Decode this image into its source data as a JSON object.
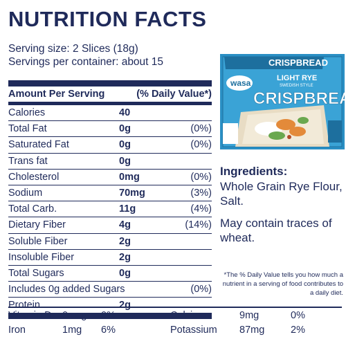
{
  "title": "NUTRITION FACTS",
  "serving_size": "Serving size: 2 Slices (18g)",
  "servings_per_container": "Servings per container: about 15",
  "table_header": {
    "left": "Amount Per Serving",
    "right": "(% Daily Value*)"
  },
  "rows": [
    {
      "name": "Calories",
      "amount": "40",
      "dv": ""
    },
    {
      "name": "Total Fat",
      "amount": "0g",
      "dv": "(0%)"
    },
    {
      "name": "Saturated Fat",
      "amount": "0g",
      "dv": "(0%)"
    },
    {
      "name": "Trans fat",
      "amount": "0g",
      "dv": ""
    },
    {
      "name": "Cholesterol",
      "amount": "0mg",
      "dv": "(0%)"
    },
    {
      "name": "Sodium",
      "amount": "70mg",
      "dv": "(3%)"
    },
    {
      "name": "Total Carb.",
      "amount": "11g",
      "dv": "(4%)"
    },
    {
      "name": "Dietary Fiber",
      "amount": "4g",
      "dv": "(14%)"
    },
    {
      "name": "Soluble Fiber",
      "amount": "2g",
      "dv": ""
    },
    {
      "name": "Insoluble Fiber",
      "amount": "2g",
      "dv": ""
    },
    {
      "name": "Total Sugars",
      "amount": "0g",
      "dv": ""
    },
    {
      "name": "Includes 0g added Sugars",
      "amount": "",
      "dv": "(0%)"
    },
    {
      "name": "Protein",
      "amount": "2g",
      "dv": ""
    }
  ],
  "vitamins": [
    {
      "n1": "Vitamin D",
      "a1": "0mcg",
      "p1": "0%",
      "n2": "Calcium",
      "a2": "9mg",
      "p2": "0%"
    },
    {
      "n1": "Iron",
      "a1": "1mg",
      "p1": "6%",
      "n2": "Potassium",
      "a2": "87mg",
      "p2": "2%"
    }
  ],
  "ingredients_title": "Ingredients:",
  "ingredients_text": "Whole Grain Rye Flour, Salt.",
  "contains_text": "May contain traces of wheat.",
  "footnote": "*The % Daily Value tells you how much a nutrient in a serving of food contributes to a daily diet.",
  "package": {
    "brand": "wasa",
    "product": "CRISPBREAD",
    "variety": "LIGHT RYE",
    "style": "SWEDISH STYLE",
    "colors": {
      "box": "#2a8fc4",
      "box_dark": "#1d6f9e",
      "text": "#ffffff"
    }
  }
}
